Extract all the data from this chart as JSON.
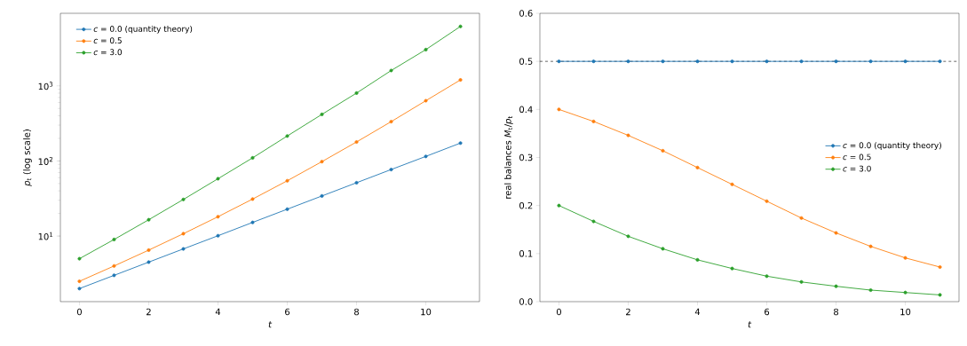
{
  "chart_data": [
    {
      "type": "line",
      "xlabel": "t",
      "ylabel": "*p*$_{t}$  (log scale)",
      "log": "y",
      "marker": "circle",
      "legend": "top left",
      "x": [
        0,
        1,
        2,
        3,
        4,
        5,
        6,
        7,
        8,
        9,
        10,
        11
      ],
      "xlim": [
        -0.55,
        11.55
      ],
      "xticks": [
        0,
        2,
        4,
        6,
        8,
        10
      ],
      "ylim": [
        1.34,
        9240
      ],
      "yticks": [
        {
          "value": 10,
          "label": "10$^{1}$"
        },
        {
          "value": 100,
          "label": "10$^{2}$"
        },
        {
          "value": 1000,
          "label": "10$^{3}$"
        }
      ],
      "series": [
        {
          "name": "*c* = 0.0 (quantity theory)",
          "color": "#1f77b4",
          "values": [
            2,
            3,
            4.5,
            6.75,
            10.1,
            15.2,
            22.8,
            34.2,
            51.3,
            76.9,
            115,
            173
          ]
        },
        {
          "name": "*c* = 0.5",
          "color": "#ff7f0e",
          "values": [
            2.5,
            4,
            6.5,
            10.75,
            18.1,
            31.1,
            54.5,
            98,
            179,
            334,
            634,
            1200
          ]
        },
        {
          "name": "*c* = 3.0",
          "color": "#2ca02c",
          "values": [
            5,
            9,
            16.5,
            30.7,
            58,
            110,
            215,
            417,
            801,
            1600,
            3035,
            6180
          ]
        }
      ]
    },
    {
      "type": "line",
      "xlabel": "t",
      "ylabel": "real balances  *M*$_{t}$/*p*$_{t}$",
      "marker": "circle",
      "legend": "center right",
      "x": [
        0,
        1,
        2,
        3,
        4,
        5,
        6,
        7,
        8,
        9,
        10,
        11
      ],
      "xlim": [
        -0.55,
        11.55
      ],
      "xticks": [
        0,
        2,
        4,
        6,
        8,
        10
      ],
      "ylim": [
        0,
        0.6
      ],
      "yticks": [
        {
          "value": 0,
          "label": "0.0"
        },
        0.1,
        0.2,
        0.3,
        0.4,
        0.5,
        0.6
      ],
      "ref_lines": [
        {
          "axis": "y",
          "value": 0.5,
          "color": "#000000",
          "line_style": "dashed"
        }
      ],
      "series": [
        {
          "name": "*c* = 0.0 (quantity theory)",
          "color": "#1f77b4",
          "values": [
            0.5,
            0.5,
            0.5,
            0.5,
            0.5,
            0.5,
            0.5,
            0.5,
            0.5,
            0.5,
            0.5,
            0.5
          ]
        },
        {
          "name": "*c* = 0.5",
          "color": "#ff7f0e",
          "values": [
            0.4,
            0.375,
            0.346,
            0.314,
            0.279,
            0.244,
            0.209,
            0.174,
            0.143,
            0.115,
            0.091,
            0.072
          ]
        },
        {
          "name": "*c* = 3.0",
          "color": "#2ca02c",
          "values": [
            0.2,
            0.167,
            0.136,
            0.11,
            0.087,
            0.069,
            0.053,
            0.041,
            0.032,
            0.024,
            0.019,
            0.014
          ]
        }
      ]
    }
  ]
}
